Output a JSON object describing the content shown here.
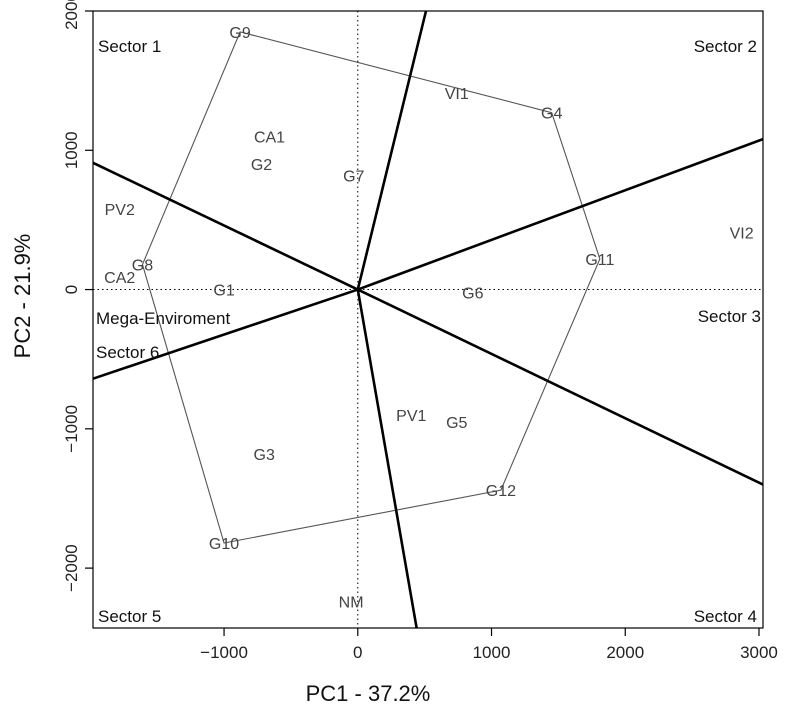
{
  "chart_data": {
    "type": "scatter",
    "subtype": "GGE biplot which-won-where",
    "xlabel": "PC1 - 37.2%",
    "ylabel": "PC2 - 21.9%",
    "xlim": [
      -1980,
      3030
    ],
    "ylim": [
      -2430,
      2000
    ],
    "xticks": [
      -1000,
      0,
      1000,
      2000,
      3000
    ],
    "yticks": [
      -2000,
      -1000,
      0,
      1000,
      2000
    ],
    "genotypes": [
      {
        "label": "G1",
        "x": -1000,
        "y": 0
      },
      {
        "label": "G2",
        "x": -720,
        "y": 900
      },
      {
        "label": "G3",
        "x": -700,
        "y": -1180
      },
      {
        "label": "G4",
        "x": 1450,
        "y": 1270
      },
      {
        "label": "G5",
        "x": 740,
        "y": -950
      },
      {
        "label": "G6",
        "x": 860,
        "y": -20
      },
      {
        "label": "G7",
        "x": -30,
        "y": 820
      },
      {
        "label": "G8",
        "x": -1610,
        "y": 180
      },
      {
        "label": "G9",
        "x": -880,
        "y": 1850
      },
      {
        "label": "G10",
        "x": -1000,
        "y": -1820
      },
      {
        "label": "G11",
        "x": 1810,
        "y": 220
      },
      {
        "label": "G12",
        "x": 1070,
        "y": -1440
      }
    ],
    "environments": [
      {
        "label": "CA1",
        "x": -660,
        "y": 1100
      },
      {
        "label": "CA2",
        "x": -1780,
        "y": 90
      },
      {
        "label": "PV1",
        "x": 400,
        "y": -900
      },
      {
        "label": "PV2",
        "x": -1780,
        "y": 580
      },
      {
        "label": "VI1",
        "x": 740,
        "y": 1410
      },
      {
        "label": "VI2",
        "x": 2870,
        "y": 410
      },
      {
        "label": "NM",
        "x": -50,
        "y": -2240
      }
    ],
    "hull_vertices": [
      "G9",
      "G4",
      "G11",
      "G12",
      "G10",
      "G8"
    ],
    "sector_rays": [
      {
        "to": [
          3030,
          1080
        ]
      },
      {
        "to": [
          3030,
          -1400
        ]
      },
      {
        "to": [
          440,
          -2430
        ]
      },
      {
        "to": [
          -1980,
          -640
        ]
      },
      {
        "to": [
          -1980,
          910
        ]
      },
      {
        "to": [
          510,
          2000
        ]
      }
    ],
    "sector_labels": [
      {
        "text": "Sector 1",
        "pos": "top-left"
      },
      {
        "text": "Sector 2",
        "pos": "top-right"
      },
      {
        "text": "Sector 3",
        "pos": "right"
      },
      {
        "text": "Sector 4",
        "pos": "bottom-right"
      },
      {
        "text": "Sector 5",
        "pos": "bottom-left"
      },
      {
        "text": "Mega-Enviroment",
        "pos": "left-upper"
      },
      {
        "text": "Sector 6",
        "pos": "left-lower"
      }
    ]
  }
}
